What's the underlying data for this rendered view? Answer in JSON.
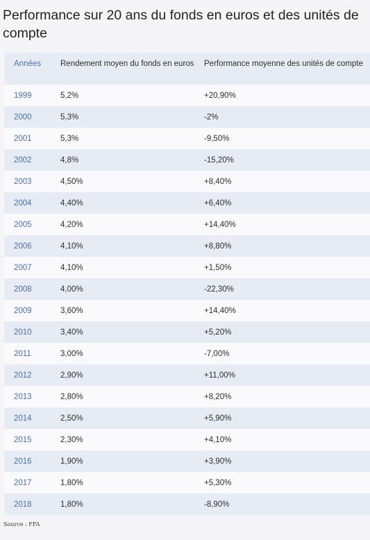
{
  "title": "Performance sur 20 ans du fonds en euros et des unités de compte",
  "table": {
    "headers": {
      "year": "Années",
      "fonds_euros": "Rendement moyen du fonds en euros",
      "unites_compte": "Performance moyenne des unités de compte"
    },
    "rows": [
      {
        "year": "1999",
        "fonds_euros": "5,2%",
        "unites_compte": "+20,90%"
      },
      {
        "year": "2000",
        "fonds_euros": "5,3%",
        "unites_compte": "-2%"
      },
      {
        "year": "2001",
        "fonds_euros": "5,3%",
        "unites_compte": "-9,50%"
      },
      {
        "year": "2002",
        "fonds_euros": "4,8%",
        "unites_compte": "-15,20%"
      },
      {
        "year": "2003",
        "fonds_euros": "4,50%",
        "unites_compte": "+8,40%"
      },
      {
        "year": "2004",
        "fonds_euros": "4,40%",
        "unites_compte": "+6,40%"
      },
      {
        "year": "2005",
        "fonds_euros": "4,20%",
        "unites_compte": "+14,40%"
      },
      {
        "year": "2006",
        "fonds_euros": "4,10%",
        "unites_compte": "+8,80%"
      },
      {
        "year": "2007",
        "fonds_euros": "4,10%",
        "unites_compte": "+1,50%"
      },
      {
        "year": "2008",
        "fonds_euros": "4,00%",
        "unites_compte": "-22,30%"
      },
      {
        "year": "2009",
        "fonds_euros": "3,60%",
        "unites_compte": "+14,40%"
      },
      {
        "year": "2010",
        "fonds_euros": "3,40%",
        "unites_compte": "+5,20%"
      },
      {
        "year": "2011",
        "fonds_euros": "3,00%",
        "unites_compte": "-7,00%"
      },
      {
        "year": "2012",
        "fonds_euros": "2,90%",
        "unites_compte": "+11,00%"
      },
      {
        "year": "2013",
        "fonds_euros": "2,80%",
        "unites_compte": "+8,20%"
      },
      {
        "year": "2014",
        "fonds_euros": "2,50%",
        "unites_compte": "+5,90%"
      },
      {
        "year": "2015",
        "fonds_euros": "2,30%",
        "unites_compte": "+4,10%"
      },
      {
        "year": "2016",
        "fonds_euros": "1,90%",
        "unites_compte": "+3,90%"
      },
      {
        "year": "2017",
        "fonds_euros": "1,80%",
        "unites_compte": "+5,30%"
      },
      {
        "year": "2018",
        "fonds_euros": "1,80%",
        "unites_compte": "-8,90%"
      }
    ]
  },
  "source": "Source : FFA",
  "colors": {
    "year_text": "#4a6fa5",
    "row_alt": "#e6ebf4",
    "row_base": "#fafafc",
    "background": "#f5f5f7"
  }
}
